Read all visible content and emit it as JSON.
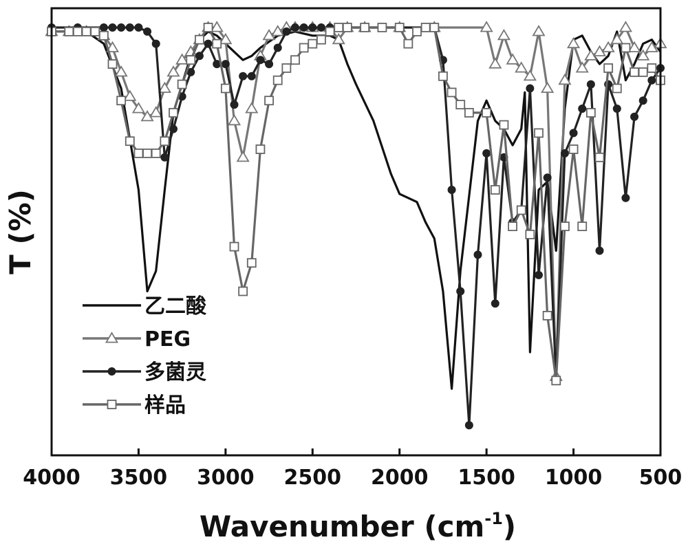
{
  "chart_data": {
    "type": "line",
    "xlabel": "Wavenumber (cm",
    "xlabel_sup": "-1",
    "xlabel_close": ")",
    "ylabel": "T (%)",
    "xlim": [
      4000,
      500
    ],
    "x_reversed": true,
    "ylim": [
      0,
      100
    ],
    "x_ticks": [
      "4000",
      "3500",
      "3000",
      "2500",
      "2000",
      "1500",
      "1000",
      "500"
    ],
    "x_tick_values": [
      4000,
      3500,
      3000,
      2500,
      2000,
      1500,
      1000,
      500
    ],
    "legend_position": "lower-left",
    "grid": false,
    "series": [
      {
        "name": "乙二酸",
        "color": "#111111",
        "marker": "none",
        "points": [
          [
            4000,
            99
          ],
          [
            3800,
            99
          ],
          [
            3700,
            96
          ],
          [
            3600,
            85
          ],
          [
            3500,
            60
          ],
          [
            3450,
            35
          ],
          [
            3400,
            40
          ],
          [
            3350,
            60
          ],
          [
            3300,
            79
          ],
          [
            3200,
            93
          ],
          [
            3150,
            97
          ],
          [
            3100,
            99
          ],
          [
            3050,
            98
          ],
          [
            3000,
            96
          ],
          [
            2950,
            94
          ],
          [
            2900,
            92
          ],
          [
            2850,
            93
          ],
          [
            2800,
            95
          ],
          [
            2700,
            98
          ],
          [
            2600,
            99
          ],
          [
            2500,
            98
          ],
          [
            2400,
            98
          ],
          [
            2350,
            97
          ],
          [
            2300,
            91
          ],
          [
            2250,
            86
          ],
          [
            2150,
            77
          ],
          [
            2050,
            64
          ],
          [
            2000,
            59
          ],
          [
            1950,
            58
          ],
          [
            1900,
            57
          ],
          [
            1850,
            52
          ],
          [
            1800,
            48
          ],
          [
            1750,
            35
          ],
          [
            1700,
            11
          ],
          [
            1650,
            40
          ],
          [
            1550,
            77
          ],
          [
            1500,
            82
          ],
          [
            1450,
            77
          ],
          [
            1400,
            75
          ],
          [
            1350,
            71
          ],
          [
            1300,
            75
          ],
          [
            1280,
            84
          ],
          [
            1250,
            20
          ],
          [
            1200,
            60
          ],
          [
            1150,
            62
          ],
          [
            1100,
            45
          ],
          [
            1050,
            80
          ],
          [
            1000,
            97
          ],
          [
            950,
            98
          ],
          [
            900,
            94
          ],
          [
            850,
            91
          ],
          [
            800,
            93
          ],
          [
            750,
            99
          ],
          [
            700,
            87
          ],
          [
            650,
            91
          ],
          [
            600,
            96
          ],
          [
            550,
            97
          ],
          [
            500,
            94
          ]
        ]
      },
      {
        "name": "PEG",
        "color": "#777777",
        "marker": "triangle",
        "points": [
          [
            4000,
            99
          ],
          [
            3900,
            99
          ],
          [
            3800,
            99
          ],
          [
            3700,
            98
          ],
          [
            3650,
            95
          ],
          [
            3600,
            89
          ],
          [
            3550,
            83
          ],
          [
            3500,
            80
          ],
          [
            3450,
            78
          ],
          [
            3400,
            79
          ],
          [
            3350,
            85
          ],
          [
            3300,
            89
          ],
          [
            3250,
            92
          ],
          [
            3200,
            94
          ],
          [
            3150,
            97
          ],
          [
            3100,
            100
          ],
          [
            3050,
            100
          ],
          [
            3000,
            97
          ],
          [
            2950,
            77
          ],
          [
            2900,
            68
          ],
          [
            2850,
            80
          ],
          [
            2800,
            93
          ],
          [
            2750,
            98
          ],
          [
            2700,
            99
          ],
          [
            2650,
            100
          ],
          [
            2600,
            100
          ],
          [
            2500,
            100
          ],
          [
            2400,
            100
          ],
          [
            2350,
            97
          ],
          [
            2300,
            100
          ],
          [
            2200,
            100
          ],
          [
            2000,
            100
          ],
          [
            1800,
            100
          ],
          [
            1500,
            100
          ],
          [
            1450,
            91
          ],
          [
            1400,
            98
          ],
          [
            1350,
            92
          ],
          [
            1300,
            90
          ],
          [
            1250,
            88
          ],
          [
            1200,
            99
          ],
          [
            1150,
            85
          ],
          [
            1100,
            14
          ],
          [
            1050,
            87
          ],
          [
            1000,
            96
          ],
          [
            950,
            90
          ],
          [
            900,
            93
          ],
          [
            850,
            94
          ],
          [
            800,
            95
          ],
          [
            750,
            97
          ],
          [
            700,
            100
          ],
          [
            650,
            95
          ],
          [
            600,
            93
          ],
          [
            550,
            95
          ],
          [
            500,
            96
          ]
        ]
      },
      {
        "name": "多菌灵",
        "color": "#222222",
        "marker": "circle",
        "points": [
          [
            4000,
            100
          ],
          [
            3850,
            100
          ],
          [
            3700,
            100
          ],
          [
            3650,
            100
          ],
          [
            3600,
            100
          ],
          [
            3550,
            100
          ],
          [
            3500,
            100
          ],
          [
            3450,
            99
          ],
          [
            3400,
            96
          ],
          [
            3350,
            68
          ],
          [
            3300,
            75
          ],
          [
            3250,
            83
          ],
          [
            3200,
            89
          ],
          [
            3150,
            93
          ],
          [
            3100,
            96
          ],
          [
            3050,
            91
          ],
          [
            3000,
            91
          ],
          [
            2950,
            81
          ],
          [
            2900,
            88
          ],
          [
            2850,
            88
          ],
          [
            2800,
            92
          ],
          [
            2750,
            91
          ],
          [
            2700,
            95
          ],
          [
            2650,
            99
          ],
          [
            2600,
            100
          ],
          [
            2550,
            100
          ],
          [
            2500,
            100
          ],
          [
            2450,
            100
          ],
          [
            2400,
            100
          ],
          [
            2350,
            100
          ],
          [
            2200,
            100
          ],
          [
            2000,
            100
          ],
          [
            1800,
            100
          ],
          [
            1750,
            92
          ],
          [
            1700,
            60
          ],
          [
            1650,
            35
          ],
          [
            1600,
            2
          ],
          [
            1550,
            44
          ],
          [
            1500,
            69
          ],
          [
            1450,
            32
          ],
          [
            1400,
            68
          ],
          [
            1350,
            52
          ],
          [
            1300,
            55
          ],
          [
            1250,
            85
          ],
          [
            1200,
            39
          ],
          [
            1150,
            63
          ],
          [
            1100,
            13
          ],
          [
            1050,
            69
          ],
          [
            1000,
            74
          ],
          [
            950,
            80
          ],
          [
            900,
            86
          ],
          [
            850,
            45
          ],
          [
            800,
            86
          ],
          [
            750,
            80
          ],
          [
            700,
            58
          ],
          [
            650,
            78
          ],
          [
            600,
            82
          ],
          [
            550,
            87
          ],
          [
            500,
            90
          ]
        ]
      },
      {
        "name": "样品",
        "color": "#666666",
        "marker": "square",
        "points": [
          [
            4000,
            99
          ],
          [
            3900,
            99
          ],
          [
            3850,
            99
          ],
          [
            3800,
            99
          ],
          [
            3750,
            99
          ],
          [
            3700,
            98
          ],
          [
            3650,
            91
          ],
          [
            3600,
            82
          ],
          [
            3550,
            72
          ],
          [
            3500,
            69
          ],
          [
            3450,
            69
          ],
          [
            3400,
            69
          ],
          [
            3350,
            72
          ],
          [
            3300,
            79
          ],
          [
            3250,
            86
          ],
          [
            3200,
            92
          ],
          [
            3150,
            97
          ],
          [
            3100,
            100
          ],
          [
            3050,
            96
          ],
          [
            3000,
            85
          ],
          [
            2950,
            46
          ],
          [
            2900,
            35
          ],
          [
            2850,
            42
          ],
          [
            2800,
            70
          ],
          [
            2750,
            82
          ],
          [
            2700,
            87
          ],
          [
            2650,
            90
          ],
          [
            2600,
            92
          ],
          [
            2550,
            95
          ],
          [
            2500,
            96
          ],
          [
            2450,
            97
          ],
          [
            2400,
            99
          ],
          [
            2350,
            100
          ],
          [
            2300,
            100
          ],
          [
            2200,
            100
          ],
          [
            2100,
            100
          ],
          [
            2000,
            100
          ],
          [
            1950,
            96
          ],
          [
            1900,
            99
          ],
          [
            1850,
            100
          ],
          [
            1800,
            100
          ],
          [
            1750,
            88
          ],
          [
            1700,
            84
          ],
          [
            1650,
            81
          ],
          [
            1600,
            79
          ],
          [
            1500,
            79
          ],
          [
            1450,
            60
          ],
          [
            1400,
            76
          ],
          [
            1350,
            51
          ],
          [
            1300,
            55
          ],
          [
            1250,
            49
          ],
          [
            1200,
            74
          ],
          [
            1150,
            29
          ],
          [
            1100,
            13
          ],
          [
            1050,
            51
          ],
          [
            1000,
            70
          ],
          [
            950,
            51
          ],
          [
            900,
            79
          ],
          [
            850,
            68
          ],
          [
            800,
            90
          ],
          [
            750,
            85
          ],
          [
            700,
            95
          ],
          [
            650,
            89
          ],
          [
            600,
            89
          ],
          [
            550,
            90
          ],
          [
            500,
            87
          ]
        ]
      }
    ]
  }
}
